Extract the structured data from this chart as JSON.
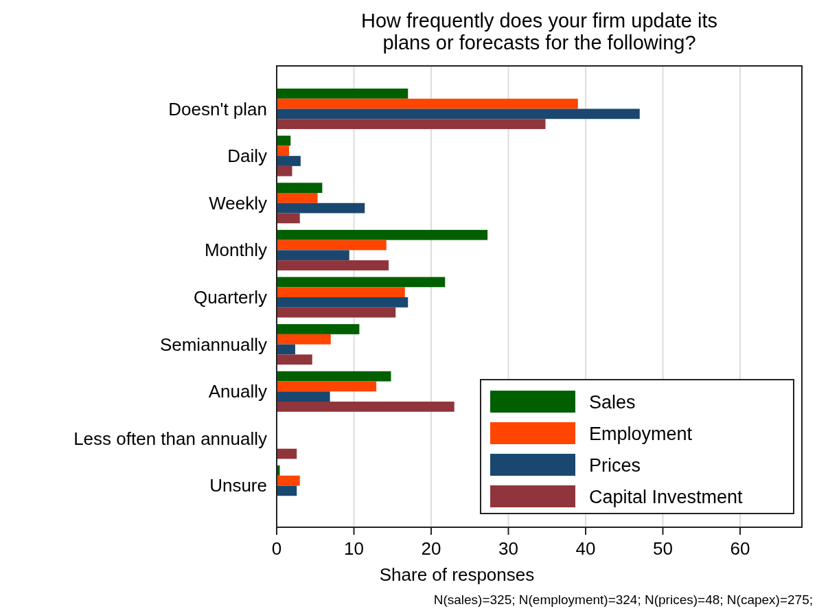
{
  "chart_data": {
    "type": "bar",
    "orientation": "horizontal",
    "title": "How frequently does your firm update its plans or forecasts for the following?",
    "xlabel": "Share of responses",
    "categories": [
      "Doesn't plan",
      "Daily",
      "Weekly",
      "Monthly",
      "Quarterly",
      "Semiannually",
      "Anually",
      "Less often than annually",
      "Unsure"
    ],
    "series": [
      {
        "name": "Sales",
        "color": "#006000",
        "values": [
          17,
          1.8,
          5.9,
          27.3,
          21.8,
          10.7,
          14.8,
          0,
          0.4
        ]
      },
      {
        "name": "Employment",
        "color": "#ff4500",
        "values": [
          39,
          1.6,
          5.3,
          14.2,
          16.6,
          7,
          12.9,
          0,
          3
        ]
      },
      {
        "name": "Prices",
        "color": "#1a476f",
        "values": [
          47,
          3.1,
          11.4,
          9.4,
          17,
          2.4,
          6.9,
          0,
          2.6
        ]
      },
      {
        "name": "Capital Investment",
        "color": "#90353b",
        "values": [
          34.8,
          2,
          3,
          14.5,
          15.4,
          4.6,
          23,
          2.6,
          null
        ]
      }
    ],
    "xlim": [
      0,
      68
    ],
    "xticks": [
      0,
      10,
      20,
      30,
      40,
      50,
      60
    ],
    "grid": "x",
    "legend": "bottom right",
    "annotations": [
      "N(sales)=325; N(employment)=324; N(prices)=48; N(capex)=275;"
    ]
  }
}
